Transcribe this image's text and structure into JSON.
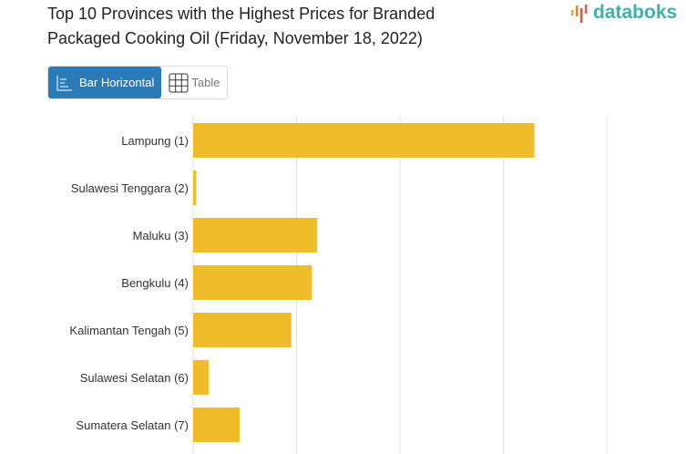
{
  "title": "Top 10 Provinces with the Highest Prices for Branded Packaged Cooking Oil (Friday, November 18, 2022)",
  "logo": {
    "text": "databoks",
    "colors": [
      "#f0a030",
      "#e05050",
      "#3fb1a8"
    ]
  },
  "view_toggle": {
    "options": [
      {
        "label": "Bar Horizontal",
        "icon": "bar-chart-icon",
        "active": true
      },
      {
        "label": "Table",
        "icon": "table-icon",
        "active": false
      }
    ],
    "active_color": "#2b7bb9"
  },
  "chart_data": {
    "type": "bar",
    "orientation": "horizontal",
    "title": "Top 10 Provinces with the Highest Prices for Branded Packaged Cooking Oil (Friday, November 18, 2022)",
    "categories": [
      "Lampung (1)",
      "Sulawesi Tenggara (2)",
      "Maluku (3)",
      "Bengkulu (4)",
      "Kalimantan Tengah (5)",
      "Sulawesi Selatan (6)",
      "Sumatera Selatan (7)"
    ],
    "values": [
      3.3,
      0.03,
      1.2,
      1.15,
      0.95,
      0.15,
      0.45
    ],
    "value_note": "no axis tick labels visible; values relative to gridline spacing",
    "xlim": [
      0,
      4.7
    ],
    "grid": true,
    "bar_color": "#f0bd2a"
  }
}
